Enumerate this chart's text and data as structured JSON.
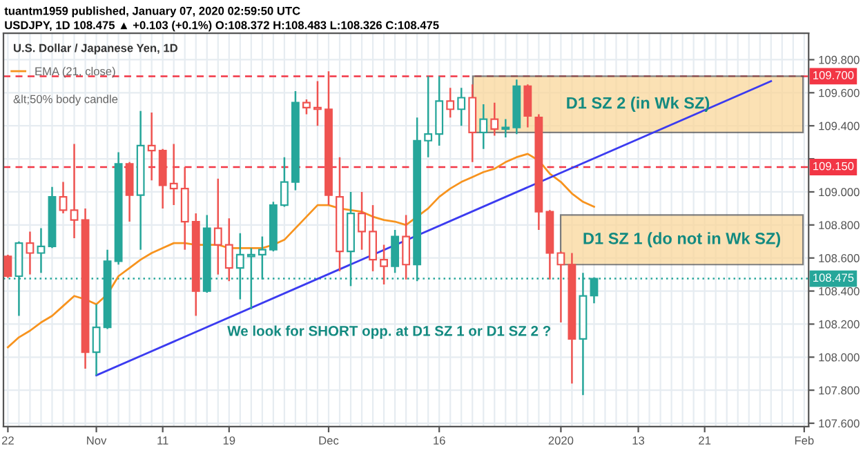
{
  "chart_data": {
    "type": "candlestick",
    "title": "U.S. Dollar / Japanese Yen, 1D",
    "annotations": [
      "tuantm1959 published, January 07, 2020 02:59:50 UTC",
      "USDJPY, 1D 108.475 ▲ +0.103 (+0.1%) O:108.372 H:108.483 L:108.326 C:108.475",
      "&lt;50% body candle",
      "We look for SHORT opp. at D1 SZ 1 or D1 SZ 2 ?"
    ],
    "categories": [
      "22",
      null,
      null,
      null,
      null,
      null,
      null,
      null,
      "Nov",
      null,
      null,
      null,
      null,
      null,
      "11",
      null,
      null,
      null,
      null,
      null,
      "19",
      null,
      null,
      null,
      null,
      null,
      null,
      null,
      null,
      "Dec",
      null,
      null,
      null,
      null,
      null,
      null,
      null,
      null,
      null,
      "16",
      null,
      null,
      null,
      null,
      null,
      null,
      null,
      null,
      null,
      null,
      "2020",
      null,
      null,
      null,
      null,
      null,
      null,
      "13",
      null,
      null,
      null,
      null,
      null,
      "21",
      null,
      null,
      null,
      null,
      null,
      null,
      null,
      null,
      "Feb"
    ],
    "ohlc": [
      [
        108.61,
        108.62,
        108.48,
        108.49
      ],
      [
        108.49,
        108.7,
        108.25,
        108.69
      ],
      [
        108.69,
        108.76,
        108.5,
        108.63
      ],
      [
        108.63,
        108.78,
        108.51,
        108.67
      ],
      [
        108.67,
        109.03,
        108.66,
        108.97
      ],
      [
        108.97,
        109.06,
        108.87,
        108.89
      ],
      [
        108.89,
        109.29,
        108.72,
        108.83
      ],
      [
        108.83,
        108.9,
        107.93,
        108.03
      ],
      [
        108.03,
        108.32,
        107.89,
        108.18
      ],
      [
        108.18,
        108.65,
        108.17,
        108.58
      ],
      [
        108.58,
        109.24,
        108.56,
        109.17
      ],
      [
        109.17,
        109.18,
        108.82,
        108.98
      ],
      [
        108.98,
        109.49,
        108.65,
        109.28
      ],
      [
        109.28,
        109.48,
        109.07,
        109.25
      ],
      [
        109.25,
        109.26,
        108.9,
        109.04
      ],
      [
        109.05,
        109.29,
        108.92,
        109.02
      ],
      [
        109.02,
        109.15,
        108.65,
        108.82
      ],
      [
        108.82,
        108.87,
        108.25,
        108.4
      ],
      [
        108.4,
        108.86,
        108.39,
        108.78
      ],
      [
        108.78,
        109.08,
        108.5,
        108.68
      ],
      [
        108.68,
        108.84,
        108.46,
        108.54
      ],
      [
        108.54,
        108.75,
        108.35,
        108.62
      ],
      [
        108.61,
        108.66,
        108.29,
        108.62
      ],
      [
        108.62,
        108.73,
        108.47,
        108.65
      ],
      [
        108.65,
        108.94,
        108.64,
        108.92
      ],
      [
        108.92,
        109.21,
        108.91,
        109.06
      ],
      [
        109.06,
        109.61,
        109.01,
        109.54
      ],
      [
        109.54,
        109.56,
        109.47,
        109.51
      ],
      [
        109.51,
        109.67,
        109.4,
        109.5
      ],
      [
        109.5,
        109.73,
        108.92,
        108.98
      ],
      [
        108.97,
        109.21,
        108.52,
        108.64
      ],
      [
        108.64,
        109.0,
        108.43,
        108.87
      ],
      [
        108.87,
        109.0,
        108.65,
        108.76
      ],
      [
        108.76,
        108.92,
        108.52,
        108.59
      ],
      [
        108.59,
        108.68,
        108.44,
        108.55
      ],
      [
        108.55,
        108.77,
        108.51,
        108.73
      ],
      [
        108.73,
        108.86,
        108.47,
        108.56
      ],
      [
        108.56,
        109.45,
        108.46,
        109.31
      ],
      [
        109.31,
        109.7,
        109.21,
        109.35
      ],
      [
        109.35,
        109.7,
        109.28,
        109.55
      ],
      [
        109.55,
        109.63,
        109.45,
        109.5
      ],
      [
        109.5,
        109.63,
        109.4,
        109.57
      ],
      [
        109.57,
        109.65,
        109.18,
        109.36
      ],
      [
        109.36,
        109.53,
        109.26,
        109.44
      ],
      [
        109.44,
        109.54,
        109.34,
        109.38
      ],
      [
        109.38,
        109.44,
        109.33,
        109.39
      ],
      [
        109.39,
        109.68,
        109.35,
        109.64
      ],
      [
        109.64,
        109.65,
        109.39,
        109.46
      ],
      [
        109.45,
        109.47,
        108.77,
        108.88
      ],
      [
        108.88,
        108.89,
        108.47,
        108.63
      ],
      [
        108.63,
        108.64,
        108.21,
        108.56
      ],
      [
        108.56,
        108.63,
        107.84,
        108.11
      ],
      [
        108.11,
        108.51,
        107.77,
        108.37
      ],
      [
        108.372,
        108.483,
        108.326,
        108.475
      ],
      null,
      null,
      null,
      null,
      null,
      null,
      null,
      null,
      null,
      null,
      null,
      null,
      null,
      null,
      null,
      null,
      null,
      null,
      null
    ],
    "colors": [
      "#ef5350",
      "#26a69a",
      "#ef5350",
      "#26a69a",
      "#26a69a",
      "#ef5350",
      "#ef5350",
      "#ef5350",
      "#26a69a",
      "#26a69a",
      "#26a69a",
      "#ef5350",
      "#26a69a",
      "#ef5350",
      "#ef5350",
      "#ef5350",
      "#ef5350",
      "#ef5350",
      "#26a69a",
      "#ef5350",
      "#ef5350",
      "#26a69a",
      "#26a69a",
      "#26a69a",
      "#26a69a",
      "#26a69a",
      "#26a69a",
      "#ef5350",
      "#ef5350",
      "#ef5350",
      "#ef5350",
      "#26a69a",
      "#ef5350",
      "#ef5350",
      "#ef5350",
      "#26a69a",
      "#ef5350",
      "#26a69a",
      "#26a69a",
      "#26a69a",
      "#ef5350",
      "#26a69a",
      "#ef5350",
      "#26a69a",
      "#ef5350",
      "#26a69a",
      "#26a69a",
      "#ef5350",
      "#ef5350",
      "#ef5350",
      "#ef5350",
      "#ef5350",
      "#26a69a",
      "#26a69a",
      null,
      null,
      null,
      null,
      null,
      null,
      null,
      null,
      null,
      null,
      null,
      null,
      null,
      null,
      null,
      null,
      null,
      null,
      null
    ],
    "series": [
      {
        "name": "EMA (21, close)",
        "type": "line",
        "color": "#f7931e",
        "values": [
          108.06,
          108.12,
          108.16,
          108.21,
          108.25,
          108.31,
          108.37,
          108.35,
          108.32,
          108.38,
          108.49,
          108.54,
          108.59,
          108.63,
          108.66,
          108.69,
          108.69,
          108.68,
          108.68,
          108.68,
          108.66,
          108.66,
          108.66,
          108.66,
          108.68,
          108.71,
          108.78,
          108.85,
          108.92,
          108.92,
          108.9,
          108.89,
          108.88,
          108.85,
          108.83,
          108.82,
          108.8,
          108.85,
          108.9,
          108.97,
          109.02,
          109.06,
          109.09,
          109.12,
          109.14,
          109.18,
          109.21,
          109.23,
          109.19,
          109.11,
          109.06,
          108.99,
          108.94,
          108.91,
          null,
          null,
          null,
          null,
          null,
          null,
          null,
          null,
          null,
          null,
          null,
          null,
          null,
          null,
          null,
          null,
          null,
          null,
          null
        ]
      },
      {
        "type": "line",
        "color": "#3b3bf0",
        "values": [
          null,
          null,
          null,
          null,
          null,
          null,
          null,
          null,
          107.89,
          null,
          null,
          null,
          null,
          null,
          null,
          null,
          null,
          null,
          null,
          null,
          null,
          null,
          null,
          null,
          null,
          null,
          null,
          null,
          null,
          null,
          null,
          null,
          null,
          null,
          null,
          null,
          null,
          null,
          null,
          null,
          null,
          null,
          null,
          null,
          null,
          null,
          null,
          null,
          null,
          null,
          null,
          null,
          null,
          null,
          null,
          null,
          null,
          null,
          null,
          null,
          null,
          null,
          null,
          null,
          null,
          null,
          null,
          null,
          null,
          109.67,
          null,
          null,
          null
        ]
      }
    ],
    "ylim": [
      107.58,
      109.96
    ],
    "yticks": [
      {
        "value": 107.6,
        "label": "107.600"
      },
      {
        "value": 107.8,
        "label": "107.800"
      },
      {
        "value": 108.0,
        "label": "108.000"
      },
      {
        "value": 108.2,
        "label": "108.200"
      },
      {
        "value": 108.4,
        "label": "108.400"
      },
      {
        "value": 108.6,
        "label": "108.600"
      },
      {
        "value": 108.8,
        "label": "108.800"
      },
      {
        "value": 109.0,
        "label": "109.000"
      },
      {
        "value": 109.2,
        "label": null
      },
      {
        "value": 109.4,
        "label": "109.400"
      },
      {
        "value": 109.6,
        "label": "109.600"
      },
      {
        "value": 109.8,
        "label": "109.800"
      }
    ],
    "ref_lines": [
      {
        "axis": "y",
        "value": 109.7,
        "label": "109.700",
        "color": "#f23645",
        "line_style": "dashed"
      },
      {
        "axis": "y",
        "value": 109.15,
        "label": "109.150",
        "color": "#f23645",
        "line_style": "dashed"
      },
      {
        "axis": "y",
        "value": 108.475,
        "label": "108.475",
        "color": "#26a69a",
        "line_style": "dotted"
      }
    ],
    "bands": [
      {
        "axis": "y",
        "from": 109.36,
        "to": 109.7,
        "label": "D1 SZ 2 (in Wk SZ)",
        "color": "#fad79b"
      },
      {
        "axis": "y",
        "from": 108.56,
        "to": 108.86,
        "label": "D1 SZ 1 (do not in Wk SZ)",
        "color": "#fad79b"
      }
    ],
    "grid": true,
    "legend": "top left"
  }
}
